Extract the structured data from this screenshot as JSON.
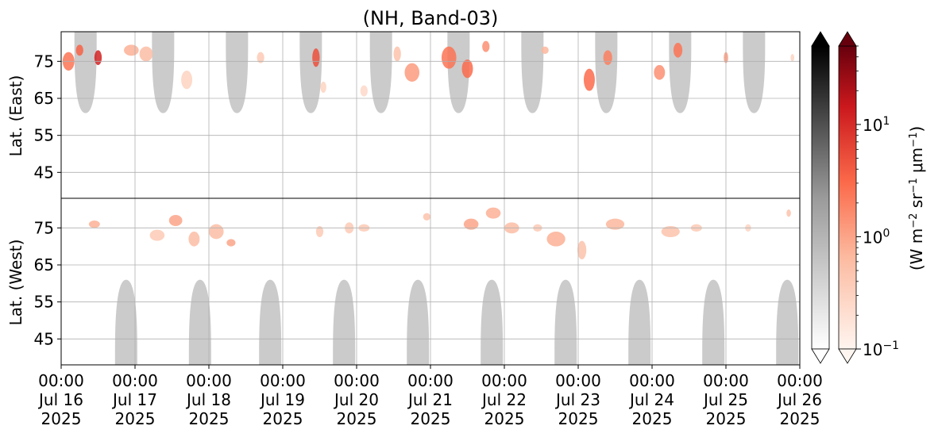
{
  "chart_data": {
    "type": "heatmap",
    "title": "(NH, Band-03)",
    "x_axis": {
      "ticks": [
        {
          "value": "2025-07-16T00:00",
          "label": [
            "00:00",
            "Jul 16",
            "2025"
          ]
        },
        {
          "value": "2025-07-17T00:00",
          "label": [
            "00:00",
            "Jul 17",
            "2025"
          ]
        },
        {
          "value": "2025-07-18T00:00",
          "label": [
            "00:00",
            "Jul 18",
            "2025"
          ]
        },
        {
          "value": "2025-07-19T00:00",
          "label": [
            "00:00",
            "Jul 19",
            "2025"
          ]
        },
        {
          "value": "2025-07-20T00:00",
          "label": [
            "00:00",
            "Jul 20",
            "2025"
          ]
        },
        {
          "value": "2025-07-21T00:00",
          "label": [
            "00:00",
            "Jul 21",
            "2025"
          ]
        },
        {
          "value": "2025-07-22T00:00",
          "label": [
            "00:00",
            "Jul 22",
            "2025"
          ]
        },
        {
          "value": "2025-07-23T00:00",
          "label": [
            "00:00",
            "Jul 23",
            "2025"
          ]
        },
        {
          "value": "2025-07-24T00:00",
          "label": [
            "00:00",
            "Jul 24",
            "2025"
          ]
        },
        {
          "value": "2025-07-25T00:00",
          "label": [
            "00:00",
            "Jul 25",
            "2025"
          ]
        },
        {
          "value": "2025-07-26T00:00",
          "label": [
            "00:00",
            "Jul 26",
            "2025"
          ]
        }
      ],
      "range": [
        "2025-07-16T00:00",
        "2025-07-26T00:00"
      ]
    },
    "panels": [
      {
        "name": "east",
        "ylabel": "Lat. (East)",
        "ylim": [
          38,
          83
        ],
        "inverted": false,
        "yticks": [
          45,
          55,
          65,
          75
        ]
      },
      {
        "name": "west",
        "ylabel": "Lat. (West)",
        "ylim": [
          38,
          83
        ],
        "inverted": true,
        "yticks": [
          75,
          65,
          55,
          45
        ]
      }
    ],
    "grid": true,
    "gray_scale": {
      "description": "daylight / no-aurora mask",
      "colormap": "Greys",
      "extend": "max"
    },
    "red_scale": {
      "colormap": "Reds",
      "scale": "log",
      "range": [
        0.1,
        50
      ],
      "extend": "both",
      "ticks": [
        {
          "value": 0.1,
          "base": "10",
          "exp": "−1"
        },
        {
          "value": 1,
          "base": "10",
          "exp": "0"
        },
        {
          "value": 10,
          "base": "10",
          "exp": "1"
        }
      ]
    },
    "colorbar_label": {
      "prefix": "(W m",
      "e1": "−2",
      "mid1": " sr",
      "e2": "−1",
      "mid2": " μm",
      "e3": "−1",
      "suffix": ")"
    },
    "east_daylight_centers": [
      0.33,
      1.38,
      2.38,
      3.38,
      4.33,
      5.38,
      6.38,
      7.38,
      8.38,
      9.38
    ],
    "west_daylight_centers": [
      0.88,
      1.88,
      2.83,
      3.83,
      4.83,
      5.83,
      6.83,
      7.83,
      8.83,
      9.83
    ],
    "east_daylight_min_lat": 61,
    "west_daylight_min_lat": 61,
    "east_aurora_blobs": [
      {
        "t": 0.1,
        "lat": 75,
        "dt": 0.16,
        "dlat": 5,
        "i": 2.5
      },
      {
        "t": 0.25,
        "lat": 78,
        "dt": 0.1,
        "dlat": 3,
        "i": 3.5
      },
      {
        "t": 0.5,
        "lat": 76,
        "dt": 0.1,
        "dlat": 4,
        "i": 12
      },
      {
        "t": 0.95,
        "lat": 78,
        "dt": 0.2,
        "dlat": 3,
        "i": 0.8
      },
      {
        "t": 1.15,
        "lat": 77,
        "dt": 0.18,
        "dlat": 4,
        "i": 0.6
      },
      {
        "t": 1.7,
        "lat": 70,
        "dt": 0.15,
        "dlat": 5,
        "i": 0.3
      },
      {
        "t": 2.7,
        "lat": 76,
        "dt": 0.1,
        "dlat": 3,
        "i": 0.4
      },
      {
        "t": 3.45,
        "lat": 76,
        "dt": 0.1,
        "dlat": 5,
        "i": 5
      },
      {
        "t": 3.55,
        "lat": 68,
        "dt": 0.08,
        "dlat": 3,
        "i": 0.3
      },
      {
        "t": 4.1,
        "lat": 67,
        "dt": 0.1,
        "dlat": 3,
        "i": 0.25
      },
      {
        "t": 4.55,
        "lat": 77,
        "dt": 0.1,
        "dlat": 4,
        "i": 0.5
      },
      {
        "t": 4.75,
        "lat": 72,
        "dt": 0.2,
        "dlat": 5,
        "i": 1.2
      },
      {
        "t": 5.25,
        "lat": 76,
        "dt": 0.2,
        "dlat": 6,
        "i": 2.5
      },
      {
        "t": 5.5,
        "lat": 73,
        "dt": 0.15,
        "dlat": 5,
        "i": 3
      },
      {
        "t": 5.75,
        "lat": 79,
        "dt": 0.1,
        "dlat": 3,
        "i": 1.5
      },
      {
        "t": 6.55,
        "lat": 78,
        "dt": 0.1,
        "dlat": 2,
        "i": 0.7
      },
      {
        "t": 7.15,
        "lat": 70,
        "dt": 0.15,
        "dlat": 6,
        "i": 3
      },
      {
        "t": 7.4,
        "lat": 76,
        "dt": 0.12,
        "dlat": 4,
        "i": 2
      },
      {
        "t": 8.1,
        "lat": 72,
        "dt": 0.15,
        "dlat": 4,
        "i": 1.5
      },
      {
        "t": 8.35,
        "lat": 78,
        "dt": 0.12,
        "dlat": 4,
        "i": 2.5
      },
      {
        "t": 9.0,
        "lat": 76,
        "dt": 0.06,
        "dlat": 3,
        "i": 1.2
      },
      {
        "t": 9.9,
        "lat": 76,
        "dt": 0.05,
        "dlat": 2,
        "i": 0.3
      }
    ],
    "west_aurora_blobs": [
      {
        "t": 0.45,
        "lat": 76,
        "dt": 0.15,
        "dlat": 2,
        "i": 0.8
      },
      {
        "t": 1.3,
        "lat": 73,
        "dt": 0.2,
        "dlat": 3,
        "i": 0.4
      },
      {
        "t": 1.55,
        "lat": 77,
        "dt": 0.18,
        "dlat": 3,
        "i": 1
      },
      {
        "t": 1.8,
        "lat": 72,
        "dt": 0.15,
        "dlat": 4,
        "i": 0.6
      },
      {
        "t": 2.1,
        "lat": 74,
        "dt": 0.2,
        "dlat": 4,
        "i": 0.6
      },
      {
        "t": 2.3,
        "lat": 71,
        "dt": 0.12,
        "dlat": 2,
        "i": 1
      },
      {
        "t": 3.5,
        "lat": 74,
        "dt": 0.1,
        "dlat": 3,
        "i": 0.4
      },
      {
        "t": 3.9,
        "lat": 75,
        "dt": 0.12,
        "dlat": 3,
        "i": 0.4
      },
      {
        "t": 4.1,
        "lat": 75,
        "dt": 0.15,
        "dlat": 2,
        "i": 0.4
      },
      {
        "t": 4.95,
        "lat": 78,
        "dt": 0.1,
        "dlat": 2,
        "i": 0.5
      },
      {
        "t": 5.55,
        "lat": 76,
        "dt": 0.2,
        "dlat": 3,
        "i": 1
      },
      {
        "t": 5.85,
        "lat": 79,
        "dt": 0.2,
        "dlat": 3,
        "i": 0.8
      },
      {
        "t": 6.1,
        "lat": 75,
        "dt": 0.2,
        "dlat": 3,
        "i": 0.6
      },
      {
        "t": 6.45,
        "lat": 75,
        "dt": 0.12,
        "dlat": 2,
        "i": 0.4
      },
      {
        "t": 6.7,
        "lat": 72,
        "dt": 0.25,
        "dlat": 4,
        "i": 0.8
      },
      {
        "t": 7.05,
        "lat": 69,
        "dt": 0.12,
        "dlat": 5,
        "i": 0.5
      },
      {
        "t": 7.5,
        "lat": 76,
        "dt": 0.25,
        "dlat": 3,
        "i": 0.7
      },
      {
        "t": 8.25,
        "lat": 74,
        "dt": 0.25,
        "dlat": 3,
        "i": 0.5
      },
      {
        "t": 8.6,
        "lat": 75,
        "dt": 0.15,
        "dlat": 2,
        "i": 0.4
      },
      {
        "t": 9.3,
        "lat": 75,
        "dt": 0.08,
        "dlat": 2,
        "i": 0.3
      },
      {
        "t": 9.85,
        "lat": 79,
        "dt": 0.06,
        "dlat": 2,
        "i": 0.5
      }
    ],
    "colors": {
      "heat_low": "#fff5f0",
      "heat_high": "#67000d",
      "gray_low": "#ffffff",
      "gray_high": "#000000",
      "mask": "#cbcbcb",
      "grid": "#b0b0b0"
    }
  }
}
